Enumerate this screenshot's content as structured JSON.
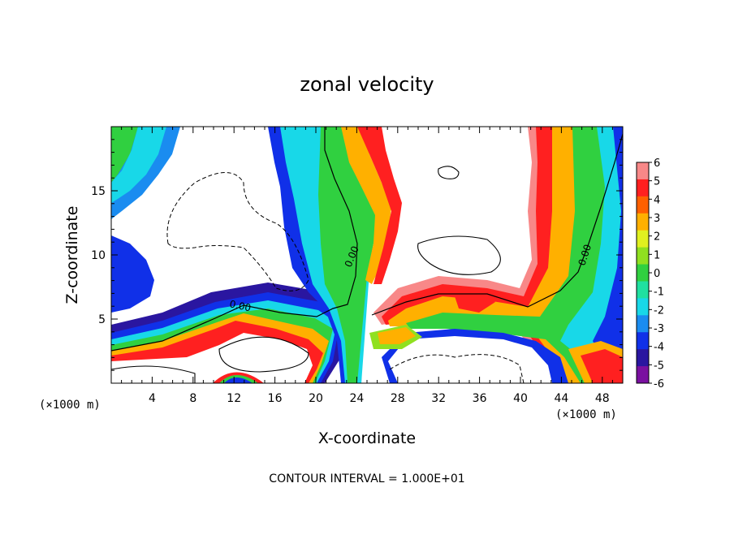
{
  "chart_data": {
    "type": "heatmap",
    "title": "zonal velocity",
    "xlabel": "X-coordinate",
    "ylabel": "Z-coordinate",
    "x_unit_note": "(×1000 m)",
    "z_unit_note": "(×1000 m)",
    "xlim": [
      0,
      50
    ],
    "zlim": [
      0,
      20
    ],
    "x_ticks": [
      "4",
      "8",
      "12",
      "16",
      "20",
      "24",
      "28",
      "32",
      "36",
      "40",
      "44",
      "48"
    ],
    "z_ticks": [
      "5",
      "10",
      "15"
    ],
    "contour_labels": [
      "0.00",
      "0.00",
      "0.00"
    ],
    "footer": "CONTOUR INTERVAL = 1.000E+01",
    "colorbar": {
      "ticks": [
        "6",
        "5",
        "4",
        "3",
        "2",
        "1",
        "0",
        "-1",
        "-2",
        "-3",
        "-4",
        "-5",
        "-6"
      ],
      "range": [
        -6,
        6
      ]
    },
    "colors": {
      "neg6": "#7a10a0",
      "neg5": "#2a16a0",
      "neg4": "#1030e8",
      "neg3": "#1a8cf0",
      "neg2": "#18d8e8",
      "neg1": "#20e0a0",
      "zero": "#30d040",
      "pos1": "#90e020",
      "pos2": "#e0f020",
      "pos3": "#ffb000",
      "pos4": "#ff6000",
      "pos5": "#ff2020",
      "pos6": "#f88888",
      "missing": "#ffffff"
    }
  }
}
